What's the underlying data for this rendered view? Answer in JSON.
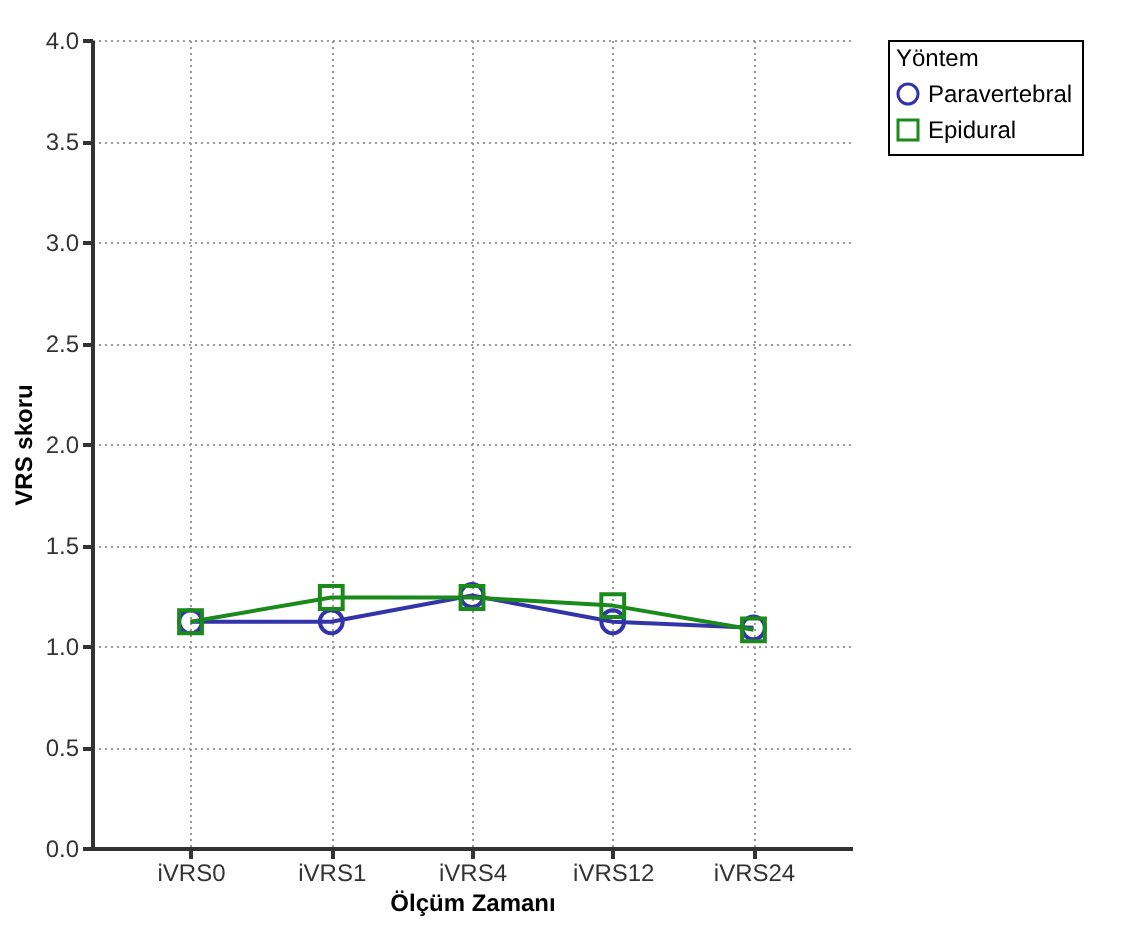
{
  "chart_data": {
    "type": "line",
    "xlabel": "Ölçüm Zamanı",
    "ylabel": "VRS skoru",
    "legend_title": "Yöntem",
    "legend": "right",
    "grid": true,
    "categories": [
      "iVRS0",
      "iVRS1",
      "iVRS4",
      "iVRS12",
      "iVRS24"
    ],
    "ylim": [
      0,
      4
    ],
    "yticks": [
      {
        "value": 0,
        "label": "0.0"
      },
      {
        "value": 0.5,
        "label": "0.5"
      },
      {
        "value": 1,
        "label": "1.0"
      },
      {
        "value": 1.5,
        "label": "1.5"
      },
      {
        "value": 2,
        "label": "2.0"
      },
      {
        "value": 2.5,
        "label": "2.5"
      },
      {
        "value": 3,
        "label": "3.0"
      },
      {
        "value": 3.5,
        "label": "3.5"
      },
      {
        "value": 4,
        "label": "4.0"
      }
    ],
    "series": [
      {
        "name": "Paravertebral",
        "color": "#3333aa",
        "marker": "circle",
        "values": [
          1.12,
          1.12,
          1.25,
          1.12,
          1.09
        ]
      },
      {
        "name": "Epidural",
        "color": "#1a8a1a",
        "marker": "square",
        "values": [
          1.12,
          1.24,
          1.24,
          1.2,
          1.08
        ]
      }
    ]
  }
}
